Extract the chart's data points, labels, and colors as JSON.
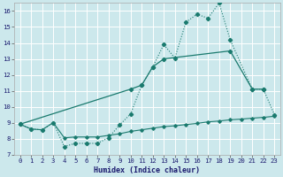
{
  "xlabel": "Humidex (Indice chaleur)",
  "bg_color": "#cce8ec",
  "grid_color": "#ffffff",
  "line_color": "#1a7a6e",
  "xlim": [
    -0.5,
    23.5
  ],
  "ylim": [
    7.0,
    16.5
  ],
  "xticks": [
    0,
    1,
    2,
    3,
    4,
    5,
    6,
    7,
    8,
    9,
    10,
    11,
    12,
    13,
    14,
    15,
    16,
    17,
    18,
    19,
    20,
    21,
    22,
    23
  ],
  "yticks": [
    7,
    8,
    9,
    10,
    11,
    12,
    13,
    14,
    15,
    16
  ],
  "s1_x": [
    0,
    1,
    2,
    3,
    4,
    5,
    6,
    7,
    8,
    9,
    10,
    11,
    12,
    13,
    14,
    15,
    16,
    17,
    18,
    19,
    21,
    22,
    23
  ],
  "s1_y": [
    8.9,
    8.6,
    8.55,
    9.0,
    7.5,
    7.7,
    7.7,
    7.7,
    8.05,
    8.85,
    9.55,
    11.35,
    12.5,
    13.9,
    13.05,
    15.3,
    15.8,
    15.55,
    16.5,
    14.2,
    11.1,
    11.1,
    9.5
  ],
  "s2_x": [
    0,
    10,
    11,
    12,
    13,
    19,
    21,
    22
  ],
  "s2_y": [
    8.9,
    11.1,
    11.35,
    12.5,
    13.0,
    13.5,
    11.1,
    11.1
  ],
  "s3_x": [
    0,
    1,
    2,
    3,
    4,
    5,
    6,
    7,
    8,
    9,
    10,
    11,
    12,
    13,
    14,
    15,
    16,
    17,
    18,
    19,
    20,
    21,
    22,
    23
  ],
  "s3_y": [
    8.9,
    8.6,
    8.55,
    9.0,
    8.05,
    8.1,
    8.1,
    8.1,
    8.2,
    8.3,
    8.45,
    8.55,
    8.65,
    8.75,
    8.8,
    8.88,
    8.95,
    9.05,
    9.1,
    9.18,
    9.22,
    9.28,
    9.33,
    9.4
  ]
}
